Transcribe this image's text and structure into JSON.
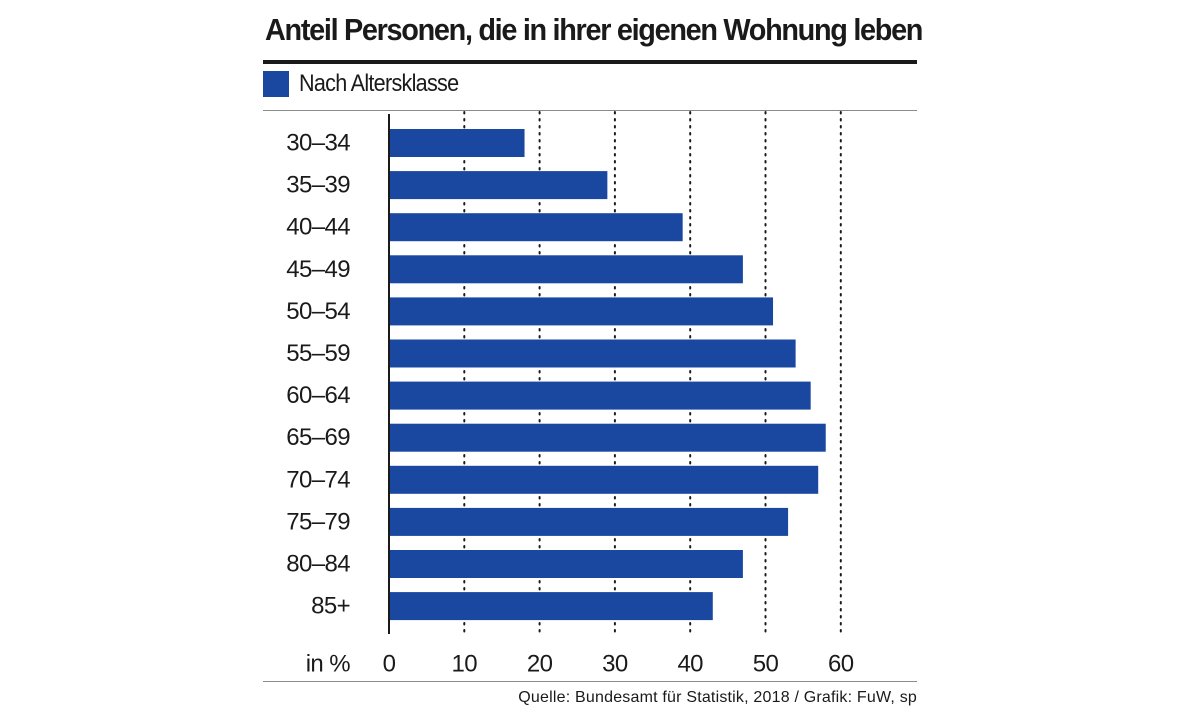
{
  "colors": {
    "bar": "#1a48a0",
    "text": "#1a1a1a",
    "grid": "#1a1a1a"
  },
  "chart_data": {
    "type": "bar",
    "orientation": "horizontal",
    "title": "Anteil Personen, die in ihrer eigenen Wohnung leben",
    "legend": [
      "Nach Altersklasse"
    ],
    "categories": [
      "30–34",
      "35–39",
      "40–44",
      "45–49",
      "50–54",
      "55–59",
      "60–64",
      "65–69",
      "70–74",
      "75–79",
      "80–84",
      "85+"
    ],
    "series": [
      {
        "name": "Nach Altersklasse",
        "values": [
          18,
          29,
          39,
          47,
          51,
          54,
          56,
          58,
          57,
          53,
          47,
          43
        ]
      }
    ],
    "xlabel": "in %",
    "xlim": [
      0,
      70
    ],
    "xticks": [
      0,
      10,
      20,
      30,
      40,
      50,
      60
    ],
    "grid": "vertical dotted",
    "source": "Quelle: Bundesamt für Statistik, 2018 / Grafik: FuW, sp"
  }
}
